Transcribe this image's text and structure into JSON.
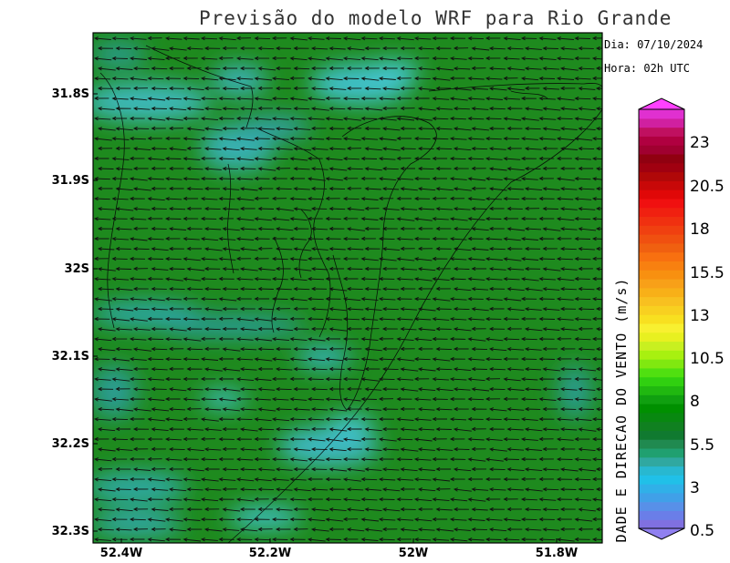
{
  "title": "Previsão do modelo WRF para Rio Grande",
  "info": {
    "date_label": "Dia: 07/10/2024",
    "time_label": "Hora: 02h UTC"
  },
  "axes": {
    "lat_ticks": [
      "31.8S",
      "31.9S",
      "32S",
      "32.1S",
      "32.2S",
      "32.3S"
    ],
    "lat_values": [
      -31.8,
      -31.9,
      -32.0,
      -32.1,
      -32.2,
      -32.3
    ],
    "lon_ticks": [
      "52.4W",
      "52.2W",
      "52W",
      "51.8W"
    ],
    "lon_values": [
      -52.4,
      -52.2,
      -52.0,
      -51.8
    ]
  },
  "colorbar": {
    "title": "DADE E DIRECAO DO VENTO (m/s)",
    "labels": [
      "23",
      "20.5",
      "18",
      "15.5",
      "13",
      "10.5",
      "8",
      "5.5",
      "3",
      "0.5"
    ],
    "label_values": [
      23,
      20.5,
      18,
      15.5,
      13,
      10.5,
      8,
      5.5,
      3,
      0.5
    ],
    "colors": [
      "#8070e0",
      "#6a7ee8",
      "#5890e8",
      "#40a0e8",
      "#30b0e8",
      "#20c0e8",
      "#28b8d0",
      "#30a8a0",
      "#20a070",
      "#208a50",
      "#107a30",
      "#108020",
      "#088810",
      "#009000",
      "#10a010",
      "#20b810",
      "#30d010",
      "#50e010",
      "#80e810",
      "#a8f010",
      "#c8f020",
      "#e8f020",
      "#f8f030",
      "#f8e020",
      "#f8d020",
      "#f8c020",
      "#f8b018",
      "#f8a018",
      "#f89010",
      "#f88010",
      "#f87010",
      "#f06010",
      "#f05010",
      "#f04010",
      "#f03010",
      "#f02010",
      "#f01010",
      "#e00808",
      "#c80808",
      "#b00808",
      "#a00010",
      "#900010",
      "#a00030",
      "#b00040",
      "#c01060",
      "#d020a0",
      "#e030d0"
    ],
    "top_cap_color": "#ff40ff",
    "bottom_cap_color": "#9080f0"
  },
  "map": {
    "base_color": "#1e8a1e",
    "calm_color": "#2ea89a",
    "prevailing_wind_direction": "east-to-west"
  }
}
